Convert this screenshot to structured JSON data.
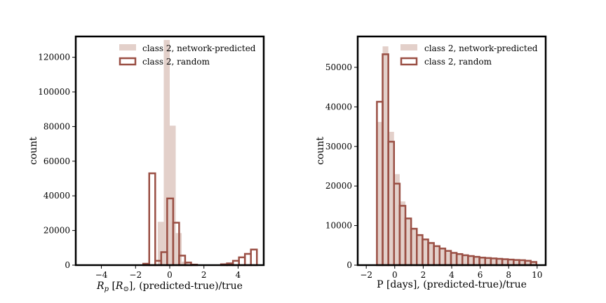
{
  "colors": {
    "network_fill": "#e3d0ca",
    "random_edge": "#9a4f44",
    "axis": "#000000"
  },
  "chart_data": [
    {
      "type": "bar",
      "title": "",
      "xlabel_main": "R",
      "xlabel_sub": "p",
      "xlabel_unit_open": " [",
      "xlabel_unit_main": "R",
      "xlabel_unit_sub": "⊙",
      "xlabel_tail": "], (predicted-true)/true",
      "ylabel": "count",
      "xlim": [
        -5.5,
        5.5
      ],
      "ylim": [
        0,
        132000
      ],
      "xticks": [
        -4,
        -2,
        0,
        2,
        4
      ],
      "yticks": [
        0,
        20000,
        40000,
        60000,
        80000,
        100000,
        120000
      ],
      "grid": false,
      "legend_position": "top-right",
      "series": [
        {
          "name": "class 2, network-predicted",
          "style": "filled",
          "bins": [
            {
              "x0": -0.7,
              "x1": -0.35,
              "y": 25000
            },
            {
              "x0": -0.35,
              "x1": 0.0,
              "y": 130000
            },
            {
              "x0": 0.0,
              "x1": 0.35,
              "y": 80500
            },
            {
              "x0": 0.35,
              "x1": 0.7,
              "y": 18500
            },
            {
              "x0": 0.7,
              "x1": 1.05,
              "y": 2000
            },
            {
              "x0": 1.05,
              "x1": 1.4,
              "y": 500
            }
          ]
        },
        {
          "name": "class 2, random",
          "style": "step",
          "bins": [
            {
              "x0": -1.55,
              "x1": -1.2,
              "y": 800
            },
            {
              "x0": -1.2,
              "x1": -0.85,
              "y": 53000
            },
            {
              "x0": -0.85,
              "x1": -0.5,
              "y": 2500
            },
            {
              "x0": -0.5,
              "x1": -0.15,
              "y": 7500
            },
            {
              "x0": -0.15,
              "x1": 0.2,
              "y": 38500
            },
            {
              "x0": 0.2,
              "x1": 0.55,
              "y": 24500
            },
            {
              "x0": 0.55,
              "x1": 0.9,
              "y": 5500
            },
            {
              "x0": 0.9,
              "x1": 1.25,
              "y": 1500
            },
            {
              "x0": 1.25,
              "x1": 1.6,
              "y": 300
            },
            {
              "x0": 3.0,
              "x1": 3.35,
              "y": 500
            },
            {
              "x0": 3.35,
              "x1": 3.7,
              "y": 1000
            },
            {
              "x0": 3.7,
              "x1": 4.05,
              "y": 2500
            },
            {
              "x0": 4.05,
              "x1": 4.4,
              "y": 4500
            },
            {
              "x0": 4.4,
              "x1": 4.75,
              "y": 6500
            },
            {
              "x0": 4.75,
              "x1": 5.1,
              "y": 9000
            }
          ]
        }
      ]
    },
    {
      "type": "bar",
      "title": "",
      "xlabel": "P [days], (predicted-true)/true",
      "ylabel": "count",
      "xlim": [
        -2.6,
        10.6
      ],
      "ylim": [
        0,
        57800
      ],
      "xticks": [
        -2,
        0,
        2,
        4,
        6,
        8,
        10
      ],
      "yticks": [
        0,
        10000,
        20000,
        30000,
        40000,
        50000
      ],
      "grid": false,
      "legend_position": "top-right",
      "series": [
        {
          "name": "class 2, network-predicted",
          "style": "filled",
          "bins": [
            {
              "x0": -1.25,
              "x1": -0.85,
              "y": 36200
            },
            {
              "x0": -0.85,
              "x1": -0.45,
              "y": 55300
            },
            {
              "x0": -0.45,
              "x1": -0.05,
              "y": 33700
            },
            {
              "x0": -0.05,
              "x1": 0.35,
              "y": 23000
            },
            {
              "x0": 0.35,
              "x1": 0.75,
              "y": 16100
            },
            {
              "x0": 0.75,
              "x1": 1.15,
              "y": 12000
            },
            {
              "x0": 1.15,
              "x1": 1.55,
              "y": 9300
            },
            {
              "x0": 1.55,
              "x1": 1.95,
              "y": 7500
            },
            {
              "x0": 1.95,
              "x1": 2.35,
              "y": 6500
            },
            {
              "x0": 2.35,
              "x1": 2.75,
              "y": 5500
            },
            {
              "x0": 2.75,
              "x1": 3.15,
              "y": 4700
            },
            {
              "x0": 3.15,
              "x1": 3.55,
              "y": 4100
            },
            {
              "x0": 3.55,
              "x1": 3.95,
              "y": 3500
            },
            {
              "x0": 3.95,
              "x1": 4.35,
              "y": 3100
            },
            {
              "x0": 4.35,
              "x1": 4.75,
              "y": 2800
            },
            {
              "x0": 4.75,
              "x1": 5.15,
              "y": 2500
            },
            {
              "x0": 5.15,
              "x1": 5.55,
              "y": 2300
            },
            {
              "x0": 5.55,
              "x1": 5.95,
              "y": 2100
            },
            {
              "x0": 5.95,
              "x1": 6.35,
              "y": 1900
            },
            {
              "x0": 6.35,
              "x1": 6.75,
              "y": 1800
            },
            {
              "x0": 6.75,
              "x1": 7.15,
              "y": 1700
            },
            {
              "x0": 7.15,
              "x1": 7.55,
              "y": 1600
            },
            {
              "x0": 7.55,
              "x1": 7.95,
              "y": 1500
            },
            {
              "x0": 7.95,
              "x1": 8.35,
              "y": 1400
            },
            {
              "x0": 8.35,
              "x1": 8.75,
              "y": 1300
            },
            {
              "x0": 8.75,
              "x1": 9.15,
              "y": 1250
            },
            {
              "x0": 9.15,
              "x1": 9.55,
              "y": 1150
            },
            {
              "x0": 9.55,
              "x1": 9.95,
              "y": 900
            }
          ]
        },
        {
          "name": "class 2, random",
          "style": "step",
          "bins": [
            {
              "x0": -1.25,
              "x1": -0.85,
              "y": 41300
            },
            {
              "x0": -0.85,
              "x1": -0.45,
              "y": 53300
            },
            {
              "x0": -0.45,
              "x1": -0.05,
              "y": 31200
            },
            {
              "x0": -0.05,
              "x1": 0.35,
              "y": 20600
            },
            {
              "x0": 0.35,
              "x1": 0.75,
              "y": 15000
            },
            {
              "x0": 0.75,
              "x1": 1.15,
              "y": 11800
            },
            {
              "x0": 1.15,
              "x1": 1.55,
              "y": 9200
            },
            {
              "x0": 1.55,
              "x1": 1.95,
              "y": 7600
            },
            {
              "x0": 1.95,
              "x1": 2.35,
              "y": 6500
            },
            {
              "x0": 2.35,
              "x1": 2.75,
              "y": 5600
            },
            {
              "x0": 2.75,
              "x1": 3.15,
              "y": 4800
            },
            {
              "x0": 3.15,
              "x1": 3.55,
              "y": 4200
            },
            {
              "x0": 3.55,
              "x1": 3.95,
              "y": 3600
            },
            {
              "x0": 3.95,
              "x1": 4.35,
              "y": 3100
            },
            {
              "x0": 4.35,
              "x1": 4.75,
              "y": 2800
            },
            {
              "x0": 4.75,
              "x1": 5.15,
              "y": 2500
            },
            {
              "x0": 5.15,
              "x1": 5.55,
              "y": 2300
            },
            {
              "x0": 5.55,
              "x1": 5.95,
              "y": 2100
            },
            {
              "x0": 5.95,
              "x1": 6.35,
              "y": 1900
            },
            {
              "x0": 6.35,
              "x1": 6.75,
              "y": 1800
            },
            {
              "x0": 6.75,
              "x1": 7.15,
              "y": 1700
            },
            {
              "x0": 7.15,
              "x1": 7.55,
              "y": 1600
            },
            {
              "x0": 7.55,
              "x1": 7.95,
              "y": 1500
            },
            {
              "x0": 7.95,
              "x1": 8.35,
              "y": 1400
            },
            {
              "x0": 8.35,
              "x1": 8.75,
              "y": 1300
            },
            {
              "x0": 8.75,
              "x1": 9.15,
              "y": 1250
            },
            {
              "x0": 9.15,
              "x1": 9.55,
              "y": 1100
            },
            {
              "x0": 9.55,
              "x1": 9.95,
              "y": 800
            }
          ]
        }
      ]
    }
  ]
}
